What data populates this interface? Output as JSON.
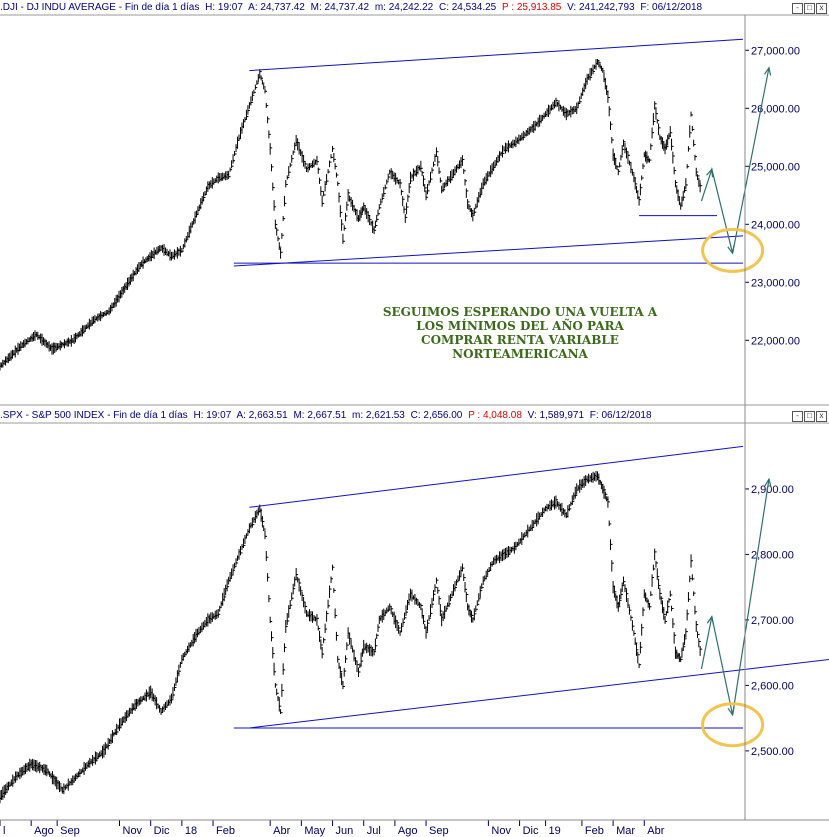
{
  "colors": {
    "price": "#000000",
    "trendline": "#1010c0",
    "arrow": "#2f6f70",
    "circle": "#f2c550",
    "axis_text": "#000060",
    "note": "#3a6a1a"
  },
  "top_header": {
    "symbol": ".DJI - DJ INDU AVERAGE - Fin de día 1 días",
    "high": "H: 19:07",
    "open": "A: 24,737.42",
    "max": "M: 24,737.42",
    "min": "m: 24,242.22",
    "close": "C: 24,534.25",
    "change": "P : 25,913.85",
    "volume": "V: 241,242,793",
    "date": "F: 06/12/2018"
  },
  "bottom_header": {
    "symbol": ".SPX - S&P 500 INDEX - Fin de día 1 días",
    "high": "H: 19:07",
    "open": "A: 2,663.51",
    "max": "M: 2,667.51",
    "min": "m: 2,621.53",
    "close": "C: 2,656.00",
    "change": "P : 4,048.08",
    "volume": "V: 1,589,971",
    "date": "F: 06/12/2018"
  },
  "window_buttons": [
    "-",
    "□",
    "x"
  ],
  "annotation": [
    "SEGUIMOS ESPERANDO UNA VUELTA A",
    "LOS MÍNIMOS DEL AÑO PARA",
    "COMPRAR RENTA VARIABLE",
    "NORTEAMERICANA"
  ],
  "chart_data": [
    {
      "type": "line",
      "name": "DJI",
      "ylim": [
        21350,
        27350
      ],
      "y_ticks": [
        22000,
        23000,
        24000,
        25000,
        26000,
        27000
      ],
      "y_tick_labels": [
        "22,000.00",
        "23,000.00",
        "24,000.00",
        "25,000.00",
        "26,000.00",
        "27,000.00"
      ],
      "grid": false,
      "x_range": [
        0,
        143
      ],
      "points": [
        [
          0,
          21550
        ],
        [
          4,
          21900
        ],
        [
          7,
          22100
        ],
        [
          10,
          21850
        ],
        [
          14,
          22000
        ],
        [
          18,
          22350
        ],
        [
          21,
          22500
        ],
        [
          24,
          22900
        ],
        [
          27,
          23300
        ],
        [
          31,
          23600
        ],
        [
          33,
          23450
        ],
        [
          35,
          23550
        ],
        [
          37,
          24000
        ],
        [
          40,
          24650
        ],
        [
          42,
          24800
        ],
        [
          44,
          24850
        ],
        [
          46,
          25500
        ],
        [
          48,
          26050
        ],
        [
          50,
          26600
        ],
        [
          51,
          26300
        ],
        [
          52,
          25300
        ],
        [
          53,
          24000
        ],
        [
          54,
          23500
        ],
        [
          55,
          24700
        ],
        [
          57,
          25450
        ],
        [
          59,
          24950
        ],
        [
          61,
          25100
        ],
        [
          62,
          24400
        ],
        [
          64,
          25300
        ],
        [
          65,
          24700
        ],
        [
          66,
          23750
        ],
        [
          67,
          24500
        ],
        [
          69,
          24100
        ],
        [
          70,
          24300
        ],
        [
          72,
          23900
        ],
        [
          73,
          24300
        ],
        [
          75,
          24900
        ],
        [
          77,
          24700
        ],
        [
          78,
          24100
        ],
        [
          79,
          24800
        ],
        [
          81,
          25000
        ],
        [
          82,
          24500
        ],
        [
          84,
          25250
        ],
        [
          85,
          24600
        ],
        [
          87,
          24850
        ],
        [
          89,
          25100
        ],
        [
          90,
          24350
        ],
        [
          91,
          24150
        ],
        [
          93,
          24700
        ],
        [
          95,
          25000
        ],
        [
          97,
          25300
        ],
        [
          99,
          25400
        ],
        [
          101,
          25550
        ],
        [
          103,
          25700
        ],
        [
          105,
          25900
        ],
        [
          107,
          26100
        ],
        [
          109,
          25900
        ],
        [
          111,
          26000
        ],
        [
          113,
          26500
        ],
        [
          115,
          26800
        ],
        [
          116,
          26650
        ],
        [
          117,
          26200
        ],
        [
          118,
          25200
        ],
        [
          119,
          24900
        ],
        [
          120,
          25400
        ],
        [
          122,
          24800
        ],
        [
          123,
          24400
        ],
        [
          124,
          25200
        ],
        [
          125,
          25100
        ],
        [
          126,
          26050
        ],
        [
          127,
          25500
        ],
        [
          128,
          25300
        ],
        [
          129,
          25600
        ],
        [
          130,
          24700
        ],
        [
          131,
          24300
        ],
        [
          132,
          24700
        ],
        [
          133,
          25900
        ],
        [
          134,
          24900
        ],
        [
          135,
          24550
        ]
      ],
      "trendlines": [
        {
          "kind": "channel-top",
          "from": [
            48,
            26650
          ],
          "to": [
            143,
            27190
          ]
        },
        {
          "kind": "channel-bottom",
          "from": [
            45,
            23280
          ],
          "to": [
            143,
            23800
          ]
        },
        {
          "kind": "support",
          "from": [
            45,
            23330
          ],
          "to": [
            143,
            23330
          ]
        },
        {
          "kind": "support",
          "from": [
            123,
            24150
          ],
          "to": [
            138,
            24150
          ]
        }
      ],
      "projection": [
        [
          135,
          24400
        ],
        [
          137,
          24950
        ],
        [
          141,
          23500
        ],
        [
          148,
          26700
        ]
      ],
      "target_circle": [
        141,
        23550
      ]
    },
    {
      "type": "line",
      "name": "SPX",
      "ylim": [
        2425,
        2990
      ],
      "y_ticks": [
        2500,
        2600,
        2700,
        2800,
        2900
      ],
      "y_tick_labels": [
        "2,500.00",
        "2,600.00",
        "2,700.00",
        "2,800.00",
        "2,900.00"
      ],
      "grid": false,
      "x_range": [
        0,
        143
      ],
      "points": [
        [
          0,
          2430
        ],
        [
          3,
          2460
        ],
        [
          6,
          2480
        ],
        [
          9,
          2470
        ],
        [
          12,
          2440
        ],
        [
          14,
          2455
        ],
        [
          17,
          2480
        ],
        [
          20,
          2500
        ],
        [
          23,
          2540
        ],
        [
          26,
          2570
        ],
        [
          29,
          2590
        ],
        [
          31,
          2560
        ],
        [
          33,
          2580
        ],
        [
          35,
          2640
        ],
        [
          38,
          2680
        ],
        [
          40,
          2700
        ],
        [
          42,
          2710
        ],
        [
          44,
          2760
        ],
        [
          46,
          2800
        ],
        [
          48,
          2840
        ],
        [
          50,
          2870
        ],
        [
          51,
          2830
        ],
        [
          52,
          2700
        ],
        [
          53,
          2600
        ],
        [
          54,
          2560
        ],
        [
          55,
          2690
        ],
        [
          57,
          2770
        ],
        [
          59,
          2710
        ],
        [
          61,
          2700
        ],
        [
          62,
          2650
        ],
        [
          64,
          2780
        ],
        [
          65,
          2640
        ],
        [
          66,
          2600
        ],
        [
          67,
          2680
        ],
        [
          69,
          2620
        ],
        [
          70,
          2660
        ],
        [
          72,
          2650
        ],
        [
          73,
          2700
        ],
        [
          75,
          2720
        ],
        [
          77,
          2680
        ],
        [
          79,
          2740
        ],
        [
          81,
          2720
        ],
        [
          82,
          2680
        ],
        [
          84,
          2760
        ],
        [
          85,
          2700
        ],
        [
          87,
          2740
        ],
        [
          89,
          2780
        ],
        [
          90,
          2720
        ],
        [
          91,
          2700
        ],
        [
          93,
          2760
        ],
        [
          95,
          2790
        ],
        [
          97,
          2800
        ],
        [
          99,
          2810
        ],
        [
          101,
          2830
        ],
        [
          103,
          2850
        ],
        [
          105,
          2870
        ],
        [
          107,
          2880
        ],
        [
          109,
          2860
        ],
        [
          111,
          2900
        ],
        [
          113,
          2915
        ],
        [
          115,
          2920
        ],
        [
          116,
          2900
        ],
        [
          117,
          2880
        ],
        [
          118,
          2750
        ],
        [
          119,
          2720
        ],
        [
          120,
          2760
        ],
        [
          122,
          2680
        ],
        [
          123,
          2630
        ],
        [
          124,
          2740
        ],
        [
          125,
          2720
        ],
        [
          126,
          2800
        ],
        [
          127,
          2740
        ],
        [
          128,
          2700
        ],
        [
          129,
          2740
        ],
        [
          130,
          2650
        ],
        [
          131,
          2640
        ],
        [
          132,
          2680
        ],
        [
          133,
          2790
        ],
        [
          134,
          2690
        ],
        [
          135,
          2640
        ]
      ],
      "trendlines": [
        {
          "kind": "channel-top",
          "from": [
            48,
            2872
          ],
          "to": [
            143,
            2965
          ]
        },
        {
          "kind": "channel-bottom",
          "from": [
            48,
            2535
          ],
          "to": [
            160,
            2640
          ]
        },
        {
          "kind": "support",
          "from": [
            45,
            2535
          ],
          "to": [
            143,
            2535
          ]
        }
      ],
      "projection": [
        [
          135,
          2625
        ],
        [
          137,
          2705
        ],
        [
          141,
          2555
        ],
        [
          148,
          2915
        ]
      ],
      "target_circle": [
        141,
        2540
      ]
    }
  ],
  "x_axis": {
    "labels": [
      "l",
      "Ago",
      "Sep",
      "Nov",
      "Dic",
      "18",
      "Feb",
      "Abr",
      "May",
      "Jun",
      "Jul",
      "Ago",
      "Sep",
      "Nov",
      "Dic",
      "19",
      "Feb",
      "Mar",
      "Abr"
    ],
    "positions": [
      0,
      6,
      11,
      23,
      29,
      35,
      41,
      52,
      58,
      64,
      70,
      76,
      82,
      94,
      100,
      105,
      112,
      118,
      124
    ]
  }
}
